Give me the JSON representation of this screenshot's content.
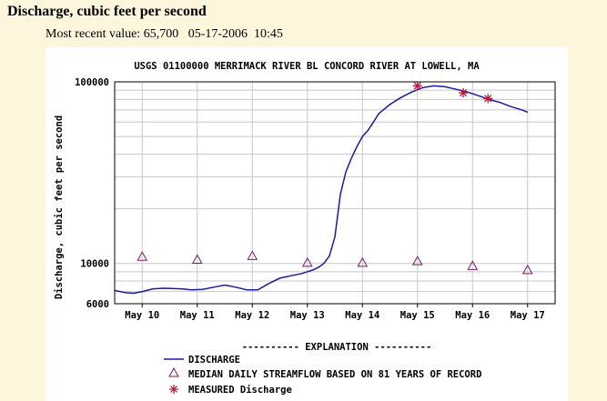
{
  "page": {
    "heading": "Discharge, cubic feet per second",
    "recent_label": "Most recent value:",
    "recent_value": "65,700",
    "recent_date": "05-17-2006",
    "recent_time": "10:45"
  },
  "chart_data": {
    "type": "line",
    "title": "USGS 01100000 MERRIMACK RIVER BL CONCORD RIVER AT LOWELL, MA",
    "ylabel": "Discharge, cubic feet per second",
    "xlabel": "",
    "yscale": "log",
    "ylim": [
      6000,
      100000
    ],
    "y_tick_labels": [
      "100000",
      "10000",
      "6000"
    ],
    "x_tick_labels": [
      "May 10",
      "May 11",
      "May 12",
      "May 13",
      "May 14",
      "May 15",
      "May 16",
      "May 17"
    ],
    "xlim": [
      9.5,
      17.5
    ],
    "grid": true,
    "series": [
      {
        "name": "DISCHARGE",
        "kind": "line",
        "color": "#1a1aa6",
        "x": [
          9.5,
          9.7,
          9.85,
          10.0,
          10.2,
          10.4,
          10.7,
          10.9,
          11.1,
          11.3,
          11.5,
          11.7,
          11.9,
          12.1,
          12.3,
          12.5,
          12.7,
          12.9,
          13.0,
          13.1,
          13.2,
          13.3,
          13.4,
          13.5,
          13.6,
          13.7,
          13.8,
          13.9,
          14.0,
          14.1,
          14.2,
          14.3,
          14.5,
          14.7,
          14.9,
          15.1,
          15.3,
          15.5,
          15.7,
          15.9,
          16.1,
          16.3,
          16.5,
          16.7,
          16.9,
          17.0
        ],
        "y": [
          7100,
          6900,
          6850,
          7000,
          7250,
          7300,
          7250,
          7150,
          7200,
          7400,
          7600,
          7400,
          7150,
          7150,
          7750,
          8300,
          8550,
          8800,
          9000,
          9200,
          9500,
          10000,
          11000,
          14000,
          24000,
          32000,
          38000,
          44000,
          50000,
          54000,
          60000,
          67000,
          75000,
          82000,
          88000,
          93000,
          95000,
          94000,
          91000,
          88000,
          84000,
          80000,
          77000,
          73000,
          70000,
          68000
        ]
      },
      {
        "name": "MEDIAN DAILY STREAMFLOW BASED ON 81 YEARS OF RECORD",
        "kind": "markers",
        "marker": "triangle",
        "color": "#7a1a6e",
        "x": [
          10,
          11,
          12,
          13,
          14,
          15,
          16,
          17
        ],
        "y": [
          10900,
          10500,
          11000,
          10100,
          10100,
          10300,
          9700,
          9200
        ]
      },
      {
        "name": "MEASURED Discharge",
        "kind": "markers",
        "marker": "star",
        "color": "#b01a3a",
        "x": [
          15.0,
          15.83,
          16.28
        ],
        "y": [
          95000,
          87000,
          81000
        ]
      }
    ],
    "legend": {
      "placement": "bottom",
      "title": "---------- EXPLANATION ----------",
      "entries": [
        "DISCHARGE",
        "MEDIAN DAILY STREAMFLOW BASED ON 81 YEARS OF RECORD",
        "MEASURED Discharge"
      ]
    }
  }
}
